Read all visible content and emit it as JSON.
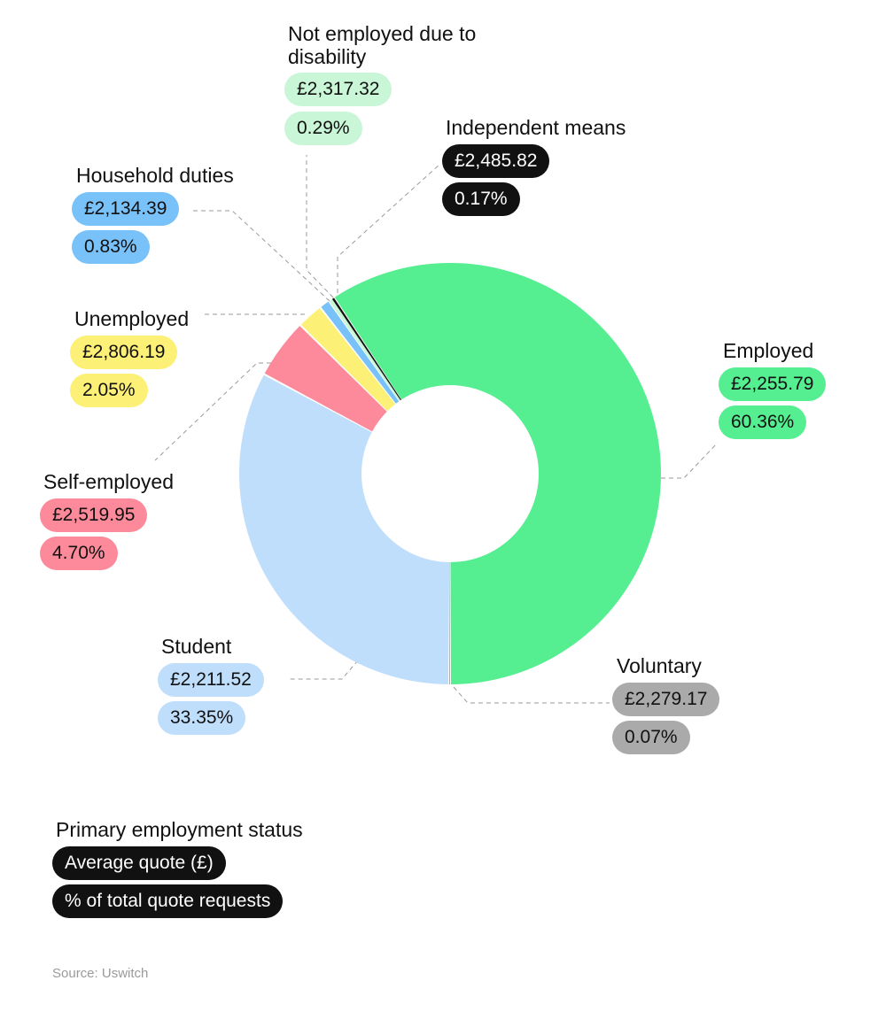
{
  "chart_data": {
    "type": "pie",
    "donut": true,
    "series_name": "Primary employment status",
    "slices": [
      {
        "label": "Employed",
        "average_quote": "£2,255.79",
        "share": "60.36%",
        "value": 60.36,
        "color": "#55ee90",
        "text_color": "#111111"
      },
      {
        "label": "Voluntary",
        "average_quote": "£2,279.17",
        "share": "0.07%",
        "value": 0.07,
        "color": "#aaaaaa",
        "text_color": "#111111"
      },
      {
        "label": "Student",
        "average_quote": "£2,211.52",
        "share": "33.35%",
        "value": 33.35,
        "color": "#bfdefc",
        "text_color": "#111111"
      },
      {
        "label": "Self-employed",
        "average_quote": "£2,519.95",
        "share": "4.70%",
        "value": 4.7,
        "color": "#fd8a9a",
        "text_color": "#111111"
      },
      {
        "label": "Unemployed",
        "average_quote": "£2,806.19",
        "share": "2.05%",
        "value": 2.05,
        "color": "#fcf076",
        "text_color": "#111111"
      },
      {
        "label": "Household duties",
        "average_quote": "£2,134.39",
        "share": "0.83%",
        "value": 0.83,
        "color": "#79c1f9",
        "text_color": "#111111"
      },
      {
        "label": "Not employed due to disability",
        "average_quote": "£2,317.32",
        "share": "0.29%",
        "value": 0.29,
        "color": "#c9f6d6",
        "text_color": "#111111"
      },
      {
        "label": "Independent means",
        "average_quote": "£2,485.82",
        "share": "0.17%",
        "value": 0.17,
        "color": "#111111",
        "text_color": "#ffffff"
      }
    ]
  },
  "legend": {
    "title": "Primary employment status",
    "quote_label": "Average quote (£)",
    "share_label": "% of total quote requests",
    "pill_color": "#111111"
  },
  "source": "Source: Uswitch"
}
